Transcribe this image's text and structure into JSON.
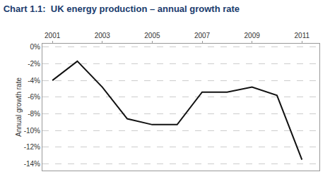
{
  "chart_data": {
    "type": "line",
    "title": "Chart 1.1:  UK energy production – annual growth rate",
    "ylabel": "Annual growth rate",
    "x": [
      2001,
      2002,
      2003,
      2004,
      2005,
      2006,
      2007,
      2008,
      2009,
      2010,
      2011
    ],
    "values": [
      -4.0,
      -1.7,
      -4.8,
      -8.6,
      -9.3,
      -9.3,
      -5.4,
      -5.4,
      -4.8,
      -5.8,
      -13.5
    ],
    "color": "#111111",
    "xlim": [
      2000.6,
      2011.7
    ],
    "xticks": [
      2001,
      2003,
      2005,
      2007,
      2009,
      2011
    ],
    "ylim": [
      -14.8,
      0.4
    ],
    "yticks": [
      {
        "value": 0,
        "label": "0%"
      },
      {
        "value": -2,
        "label": "-2%"
      },
      {
        "value": -4,
        "label": "-4%"
      },
      {
        "value": -6,
        "label": "-6%"
      },
      {
        "value": -8,
        "label": "-8%"
      },
      {
        "value": -10,
        "label": "-10%"
      },
      {
        "value": -12,
        "label": "-12%"
      },
      {
        "value": -14,
        "label": "-14%"
      }
    ],
    "grid": "y"
  }
}
